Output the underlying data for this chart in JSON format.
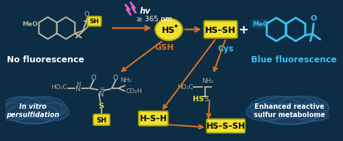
{
  "bg_color": "#0c2d44",
  "yellow_fill": "#f0e030",
  "yellow_border": "#b8a800",
  "blue_c": "#3bbfef",
  "gray_c": "#b8b0a0",
  "cloud_c": "#1a4060",
  "cloud_b": "#2a6090",
  "oran": "#d4702a",
  "pink": "#e060d0",
  "white": "#ffffff",
  "black": "#000000",
  "label_no_fluor": "No fluorescence",
  "label_blue_fluor": "Blue fluorescence",
  "label_hv": "hv",
  "label_365": "≥ 365 nm",
  "label_GSH": "GSH",
  "label_Cys": "Cys",
  "label_invitro": "In vitro\npersulfidation",
  "label_enhanced": "Enhanced reactive\nsulfur metabolome",
  "label_MeO": "MeO",
  "label_SH": "SH",
  "label_HS_dot": "HS",
  "label_HSSH": "HS–SH",
  "label_HSH": "H–S–H",
  "label_HSSSH": "HS–S–SH"
}
